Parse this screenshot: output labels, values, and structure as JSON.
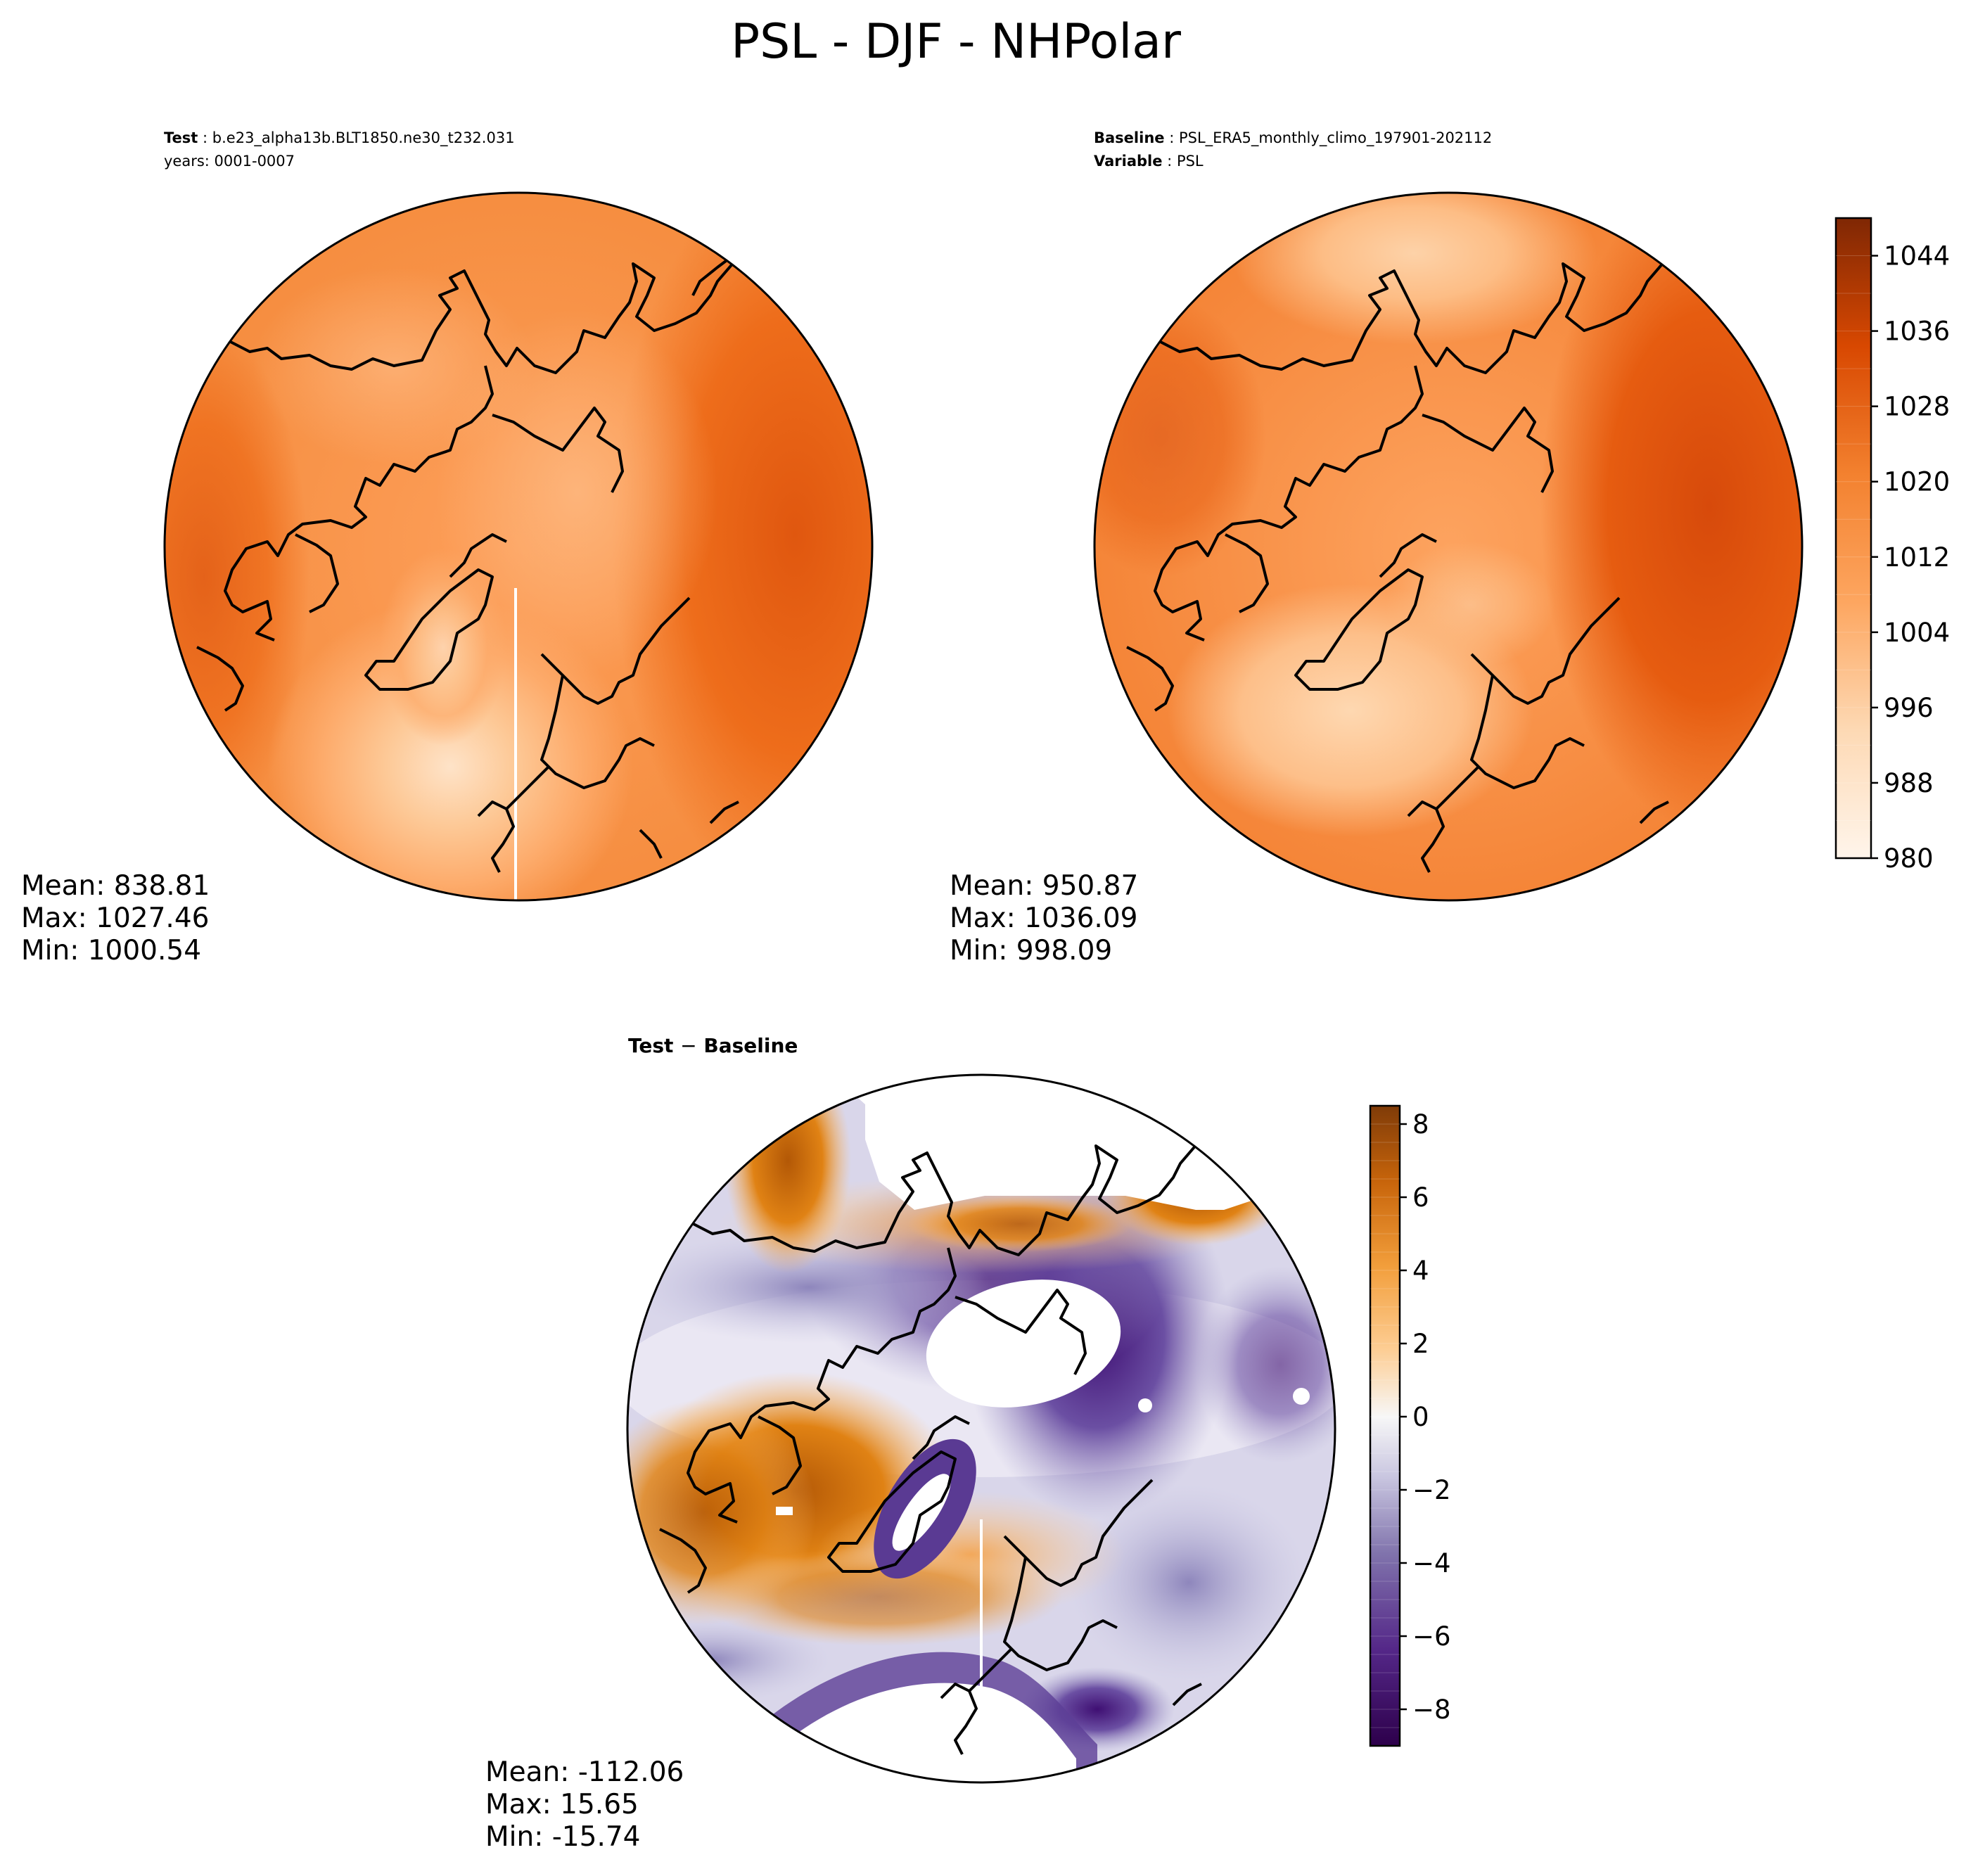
{
  "figure": {
    "title": "PSL - DJF - NHPolar"
  },
  "panels": {
    "test": {
      "header_label": "Test",
      "header_value": "b.e23_alpha13b.BLT1850.ne30_t232.031",
      "years_line": "years: 0001-0007",
      "stats": {
        "mean": "Mean: 838.81",
        "max": "Max: 1027.46",
        "min": "Min: 1000.54"
      }
    },
    "baseline": {
      "header_label": "Baseline",
      "header_value": "PSL_ERA5_monthly_climo_197901-202112",
      "variable_label": "Variable",
      "variable_value": "PSL",
      "stats": {
        "mean": "Mean: 950.87",
        "max": "Max: 1036.09",
        "min": "Min: 998.09"
      }
    },
    "diff": {
      "title_left": "Test",
      "title_sep": "−",
      "title_right": "Baseline",
      "stats": {
        "mean": "Mean: -112.06",
        "max": "Max: 15.65",
        "min": "Min: -15.74"
      }
    }
  },
  "colorbars": {
    "psl": {
      "colormap": "Oranges",
      "min": 980,
      "max": 1048,
      "step": 4,
      "tick_values": [
        980,
        988,
        996,
        1004,
        1012,
        1020,
        1028,
        1036,
        1044
      ],
      "tick_labels": [
        "980",
        "988",
        "996",
        "1004",
        "1012",
        "1020",
        "1028",
        "1036",
        "1044"
      ]
    },
    "diff": {
      "colormap": "PuOr_r",
      "min": -9,
      "max": 8.5,
      "step": 0.5,
      "tick_values": [
        -8,
        -6,
        -4,
        -2,
        0,
        2,
        4,
        6,
        8
      ],
      "tick_labels": [
        "−8",
        "−6",
        "−4",
        "−2",
        "0",
        "2",
        "4",
        "6",
        "8"
      ]
    }
  },
  "chart_data": [
    {
      "type": "heatmap",
      "title": "Test",
      "projection": "north polar stereographic",
      "variable": "PSL",
      "colorbar_range": [
        980,
        1048
      ],
      "stats": {
        "mean": 838.81,
        "max": 1027.46,
        "min": 1000.54
      }
    },
    {
      "type": "heatmap",
      "title": "Baseline",
      "projection": "north polar stereographic",
      "variable": "PSL",
      "colorbar_range": [
        980,
        1048
      ],
      "stats": {
        "mean": 950.87,
        "max": 1036.09,
        "min": 998.09
      }
    },
    {
      "type": "heatmap",
      "title": "Test − Baseline",
      "projection": "north polar stereographic",
      "colorbar_range": [
        -9,
        8.5
      ],
      "stats": {
        "mean": -112.06,
        "max": 15.65,
        "min": -15.74
      }
    }
  ]
}
